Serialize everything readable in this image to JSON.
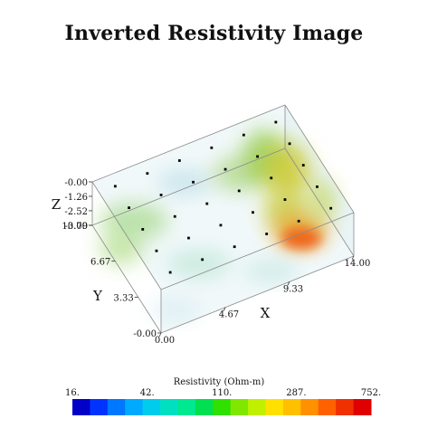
{
  "chart_data": {
    "type": "heatmap",
    "title": "Inverted Resistivity Image",
    "axes": {
      "x": {
        "label": "X",
        "ticks": [
          "0.00",
          "4.67",
          "9.33",
          "14.00"
        ],
        "range": [
          0,
          14
        ]
      },
      "y": {
        "label": "Y",
        "ticks": [
          "-0.00",
          "3.33",
          "6.67",
          "10.00"
        ],
        "range": [
          0,
          10
        ]
      },
      "z": {
        "label": "Z",
        "ticks": [
          "-0.00",
          "-1.26",
          "-2.52",
          "-3.79"
        ],
        "range": [
          -3.79,
          0
        ]
      }
    },
    "colorbar": {
      "label": "Resistivity (Ohm-m)",
      "ticks": [
        "16.",
        "42.",
        "110.",
        "287.",
        "752."
      ],
      "tick_values": [
        16,
        42,
        110,
        287,
        752
      ],
      "scale": "log",
      "colors": [
        "#0000c8",
        "#0033ff",
        "#0077ff",
        "#00aaff",
        "#00ccee",
        "#00e0c0",
        "#00e890",
        "#00e050",
        "#30e000",
        "#80e800",
        "#c0f000",
        "#ffe000",
        "#ffc000",
        "#ff9000",
        "#ff6000",
        "#f03000",
        "#e00000"
      ]
    },
    "electrode_grid": {
      "rows": 5,
      "cols": 6,
      "z": 0
    }
  }
}
